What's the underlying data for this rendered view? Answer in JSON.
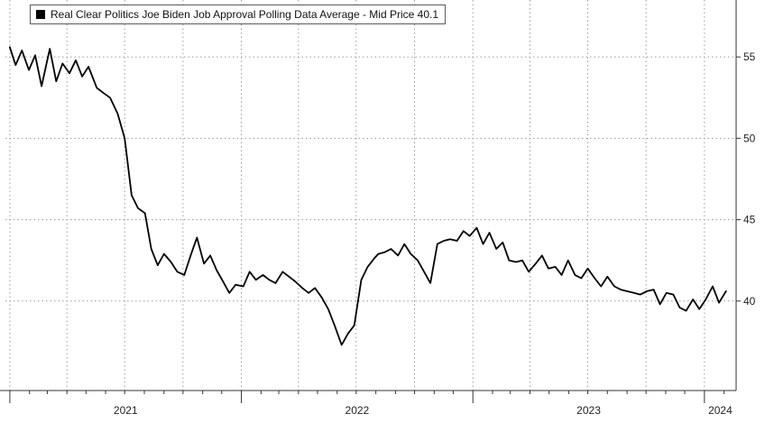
{
  "chart_data": {
    "type": "line",
    "title": "",
    "xlabel": "",
    "ylabel": "",
    "legend": {
      "label": "Real Clear Politics Joe Biden Job Approval Polling Data Average - Mid Price 40.1",
      "placement": "top-left"
    },
    "line_color": "#000000",
    "grid": true,
    "y_axis_side": "right",
    "ylim": [
      34.5,
      58.5
    ],
    "yticks": [
      "40",
      "45",
      "50",
      "55"
    ],
    "xlim": [
      "2020-12-25",
      "2024-02-20"
    ],
    "xticks": [
      "2021",
      "2022",
      "2023",
      "2024"
    ],
    "series": [
      {
        "name": "Real Clear Politics Joe Biden Job Approval Polling Data Average",
        "x": [
          "2021-01-01",
          "2021-01-10",
          "2021-01-20",
          "2021-01-31",
          "2021-02-10",
          "2021-02-20",
          "2021-03-05",
          "2021-03-15",
          "2021-03-25",
          "2021-04-05",
          "2021-04-15",
          "2021-04-25",
          "2021-05-05",
          "2021-05-18",
          "2021-05-28",
          "2021-06-08",
          "2021-06-20",
          "2021-07-01",
          "2021-07-12",
          "2021-07-22",
          "2021-08-02",
          "2021-08-12",
          "2021-08-22",
          "2021-09-01",
          "2021-09-12",
          "2021-09-22",
          "2021-10-03",
          "2021-10-13",
          "2021-10-23",
          "2021-11-03",
          "2021-11-13",
          "2021-11-23",
          "2021-12-03",
          "2021-12-13",
          "2021-12-23",
          "2022-01-04",
          "2022-01-14",
          "2022-01-24",
          "2022-02-04",
          "2022-02-14",
          "2022-02-24",
          "2022-03-07",
          "2022-03-17",
          "2022-03-27",
          "2022-04-07",
          "2022-04-17",
          "2022-04-27",
          "2022-05-08",
          "2022-05-18",
          "2022-05-28",
          "2022-06-08",
          "2022-06-18",
          "2022-06-28",
          "2022-07-09",
          "2022-07-19",
          "2022-07-29",
          "2022-08-05",
          "2022-08-15",
          "2022-08-25",
          "2022-09-05",
          "2022-09-15",
          "2022-09-25",
          "2022-10-06",
          "2022-10-16",
          "2022-10-26",
          "2022-11-06",
          "2022-11-16",
          "2022-11-26",
          "2022-12-07",
          "2022-12-17",
          "2022-12-27",
          "2023-01-07",
          "2023-01-17",
          "2023-01-27",
          "2023-02-07",
          "2023-02-17",
          "2023-02-27",
          "2023-03-10",
          "2023-03-20",
          "2023-03-30",
          "2023-04-10",
          "2023-04-20",
          "2023-04-30",
          "2023-05-11",
          "2023-05-21",
          "2023-05-31",
          "2023-06-11",
          "2023-06-21",
          "2023-07-01",
          "2023-07-12",
          "2023-07-22",
          "2023-08-01",
          "2023-08-12",
          "2023-08-22",
          "2023-09-01",
          "2023-09-12",
          "2023-09-22",
          "2023-10-02",
          "2023-10-13",
          "2023-10-23",
          "2023-11-02",
          "2023-11-13",
          "2023-11-23",
          "2023-12-03",
          "2023-12-14",
          "2023-12-24",
          "2024-01-03",
          "2024-01-14",
          "2024-01-24",
          "2024-02-04"
        ],
        "values": [
          55.6,
          54.5,
          55.4,
          54.2,
          55.1,
          53.2,
          55.5,
          53.5,
          54.6,
          54.0,
          54.8,
          53.8,
          54.4,
          53.1,
          52.8,
          52.5,
          51.5,
          50.0,
          46.5,
          45.7,
          45.4,
          43.2,
          42.2,
          42.9,
          42.4,
          41.8,
          41.6,
          42.8,
          43.9,
          42.3,
          42.8,
          41.9,
          41.2,
          40.5,
          41.0,
          40.9,
          41.8,
          41.3,
          41.6,
          41.3,
          41.1,
          41.8,
          41.5,
          41.2,
          40.8,
          40.5,
          40.8,
          40.2,
          39.5,
          38.5,
          37.3,
          38.0,
          38.5,
          41.3,
          42.1,
          42.6,
          42.9,
          43.0,
          43.2,
          42.8,
          43.5,
          42.9,
          42.5,
          41.8,
          41.1,
          43.5,
          43.7,
          43.8,
          43.7,
          44.3,
          44.0,
          44.5,
          43.5,
          44.2,
          43.2,
          43.6,
          42.5,
          42.4,
          42.5,
          41.8,
          42.3,
          42.8,
          42.0,
          42.1,
          41.6,
          42.5,
          41.6,
          41.4,
          42.0,
          41.4,
          40.9,
          41.5,
          40.9,
          40.7,
          40.6,
          40.5,
          40.4,
          40.6,
          40.7,
          39.8,
          40.5,
          40.4,
          39.6,
          39.4,
          40.1,
          39.5,
          40.1,
          40.9,
          39.9,
          40.6
        ]
      }
    ]
  }
}
